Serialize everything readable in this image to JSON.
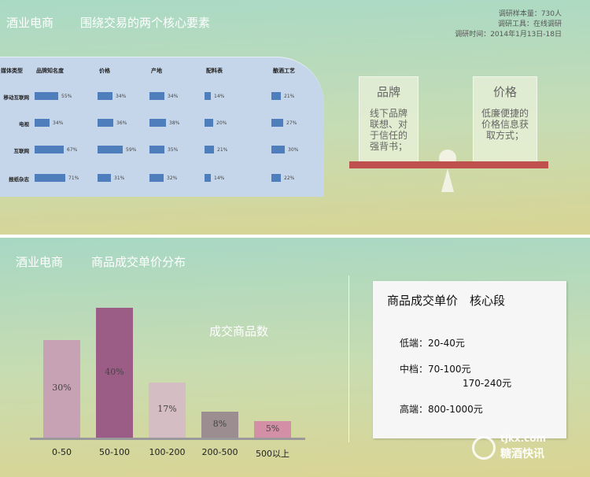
{
  "slide1": {
    "brand": "酒业电商",
    "title": "围绕交易的两个核心要素",
    "meta": [
      "调研样本量：730人",
      "调研工具：在线调研",
      "调研时间：2014年1月13日-18日"
    ],
    "scale_left": {
      "title": "品牌",
      "body": "线下品牌联想、对于信任的强背书；"
    },
    "scale_right": {
      "title": "价格",
      "body": "低廉便捷的价格信息获取方式；"
    }
  },
  "slide2": {
    "brand": "酒业电商",
    "title": "商品成交单价分布",
    "chart_label": "成交商品数",
    "key": {
      "title": "商品成交单价　核心段",
      "low": "低端：20-40元",
      "mid1": "中档：70-100元",
      "mid2": "170-240元",
      "high": "高端：800-1000元"
    },
    "watermark": {
      "url": "tjkx.com",
      "name": "糖酒快讯"
    }
  },
  "chart_data": [
    {
      "type": "table",
      "row_header": "媒体类型",
      "columns": [
        "品牌知名度",
        "价格",
        "产地",
        "配料表",
        "酿酒工艺"
      ],
      "rows": [
        {
          "label": "移动互联网",
          "values": [
            55,
            34,
            34,
            14,
            21
          ]
        },
        {
          "label": "电视",
          "values": [
            34,
            36,
            38,
            20,
            27
          ]
        },
        {
          "label": "互联网",
          "values": [
            67,
            59,
            35,
            21,
            30
          ]
        },
        {
          "label": "报纸杂志",
          "values": [
            71,
            31,
            32,
            14,
            22
          ]
        }
      ],
      "unit": "%",
      "bar_color": "#4f7ebd"
    },
    {
      "type": "bar",
      "title": "成交商品数",
      "categories": [
        "0-50",
        "50-100",
        "100-200",
        "200-500",
        "500以上"
      ],
      "values": [
        30,
        40,
        17,
        8,
        5
      ],
      "labels": [
        "30%",
        "40%",
        "17%",
        "8%",
        "5%"
      ],
      "colors": [
        "#c7a2b4",
        "#9b5d86",
        "#d4bdc3",
        "#9b8d90",
        "#d38fa6"
      ],
      "ylim": [
        0,
        40
      ]
    }
  ]
}
